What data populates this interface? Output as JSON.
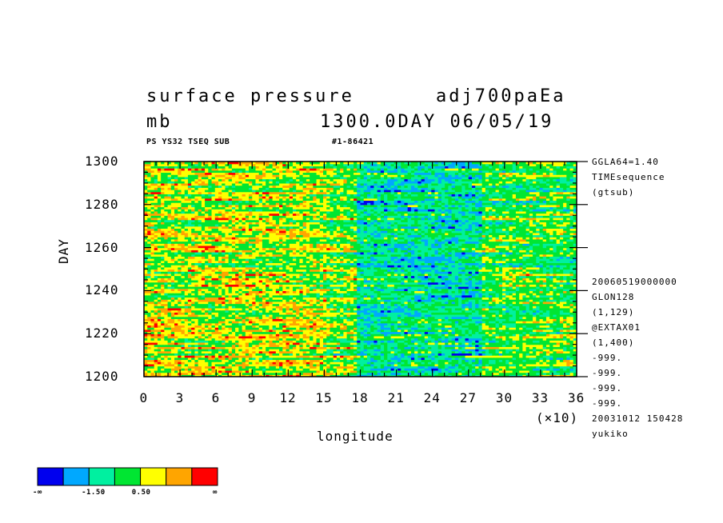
{
  "header": {
    "title_left": "surface pressure",
    "title_right": "adj700paEa",
    "units": "mb",
    "time_stamp": "1300.0DAY 06/05/19",
    "subtitle_left": "PS YS32 TSEQ SUB",
    "subtitle_right": "#1-86421"
  },
  "right_info": {
    "top": [
      "GGLA64=1.40",
      "TIMEsequence",
      "(gtsub)"
    ],
    "bottom": [
      "20060519000000",
      "GLON128",
      "(1,129)",
      "@EXTAX01",
      "(1,400)",
      "-999.",
      "-999.",
      "-999.",
      "-999.",
      "20031012 150428",
      "yukiko"
    ]
  },
  "chart_data": {
    "type": "heatmap",
    "title": "surface pressure",
    "xlabel": "longitude",
    "ylabel": "DAY",
    "x_scale_label": "(×10)",
    "xlim": [
      0,
      36
    ],
    "ylim": [
      1200,
      1300
    ],
    "x_ticks": [
      "0",
      "3",
      "6",
      "9",
      "12",
      "15",
      "18",
      "21",
      "24",
      "27",
      "30",
      "33",
      "36"
    ],
    "y_ticks": [
      "1200",
      "1220",
      "1240",
      "1260",
      "1280",
      "1300"
    ],
    "colorbar": {
      "colors": [
        "#0000ee",
        "#00a8ff",
        "#00f0a0",
        "#00e632",
        "#ffff00",
        "#ffa500",
        "#ff0000"
      ],
      "labels": [
        "-∞",
        "-1.50",
        "0.50",
        "∞"
      ]
    },
    "approx_field": "Noisy anomaly field; negative (blue) anomalies concentrated between longitude ~17 and ~28 (×10), positive (orange/red) anomalies west of ~15 (×10)."
  }
}
